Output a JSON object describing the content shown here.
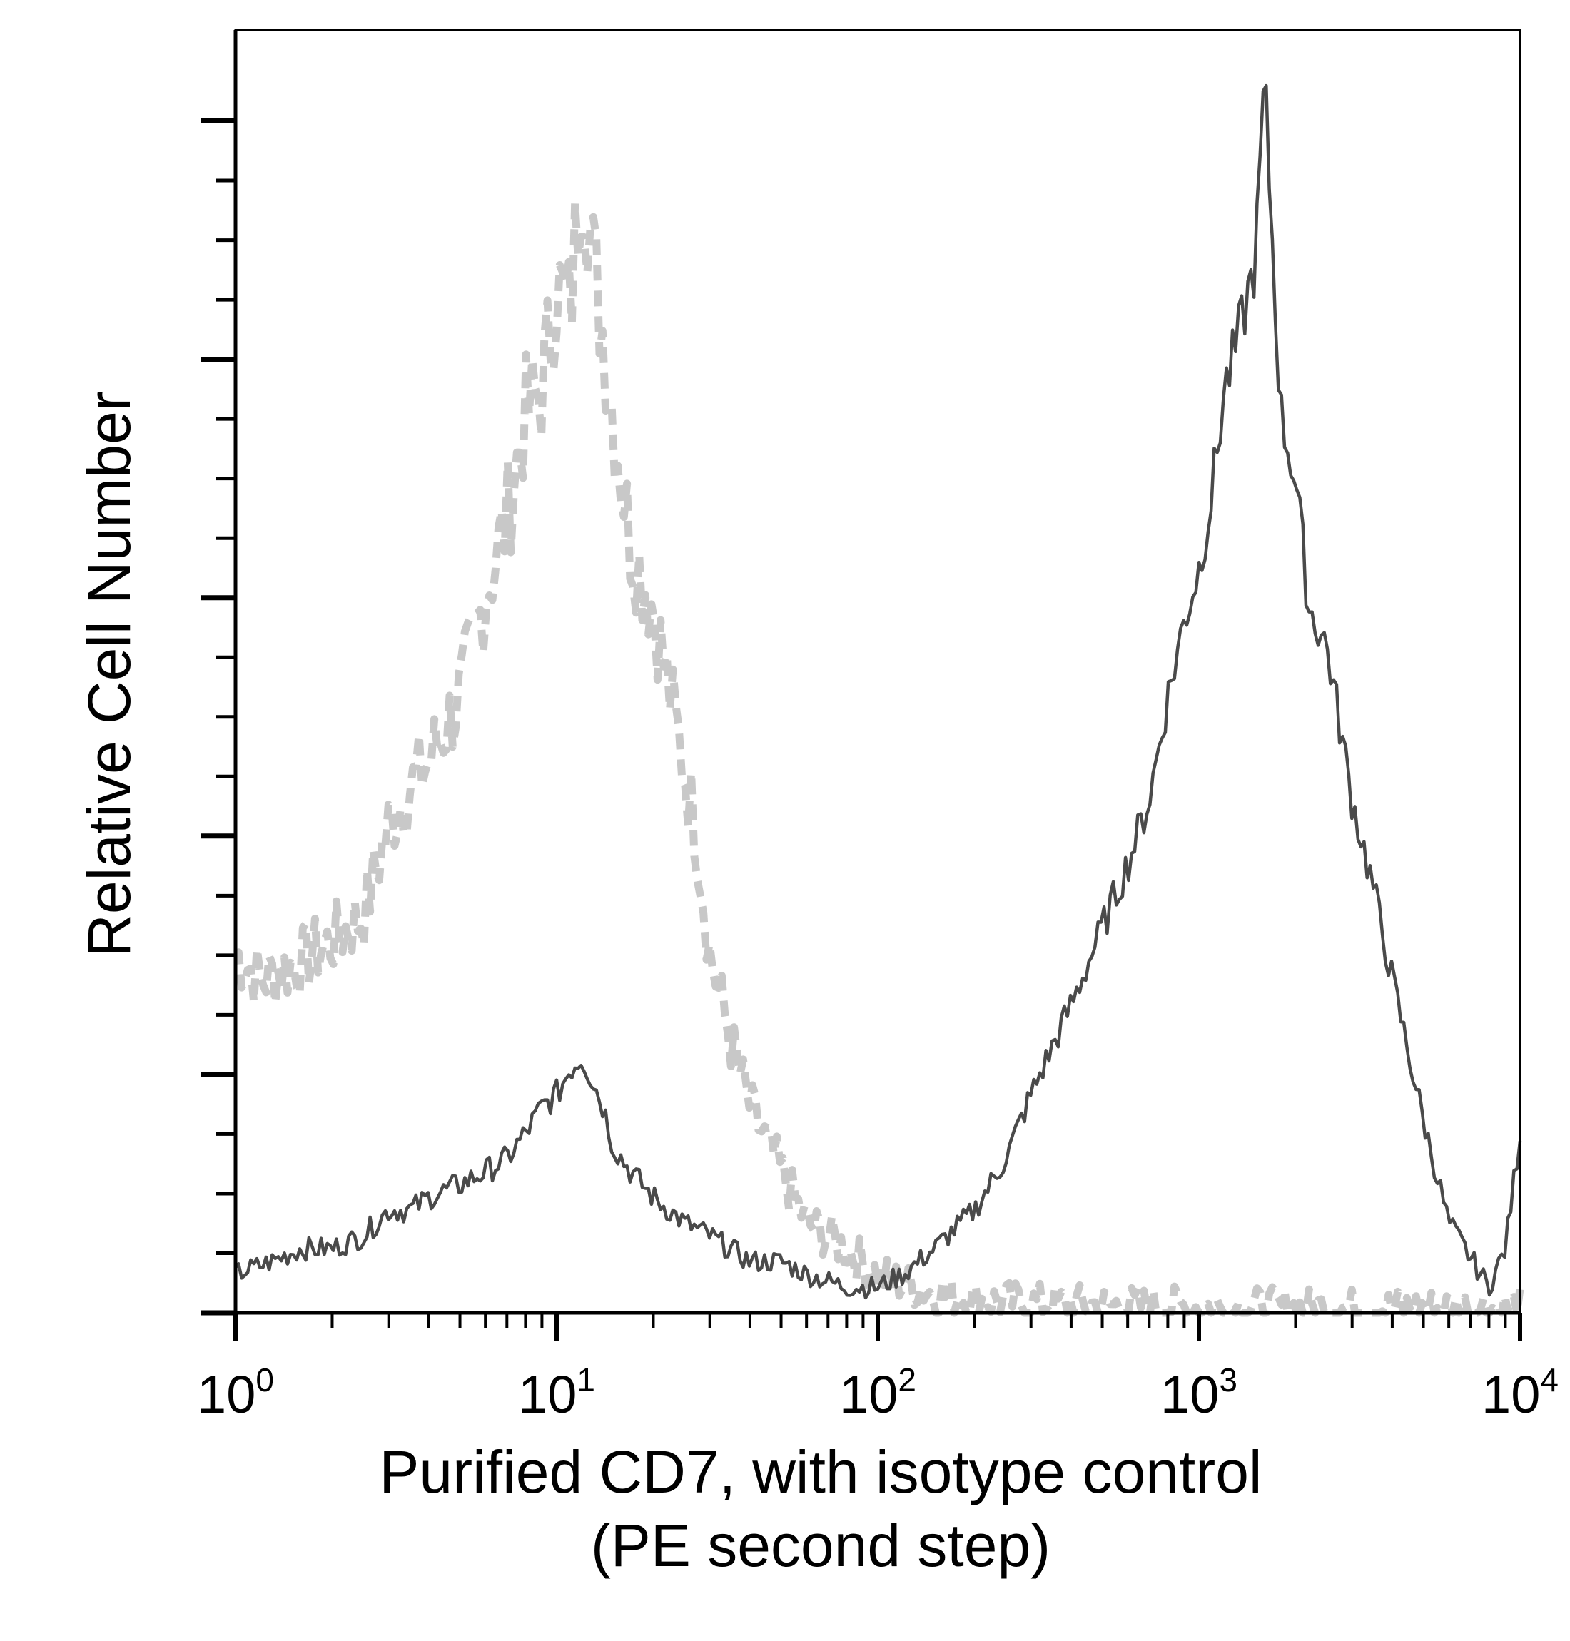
{
  "chart_data": {
    "type": "line",
    "title": "",
    "xlabel_line1": "Purified CD7, with isotype control",
    "xlabel_line2": "(PE second step)",
    "ylabel": "Relative Cell Number",
    "x_scale": "log",
    "xlim": [
      1,
      10000
    ],
    "ylim": [
      0,
      1
    ],
    "grid": false,
    "legend": "none",
    "x_ticks": [
      {
        "base": "10",
        "exp": "0",
        "value": 1
      },
      {
        "base": "10",
        "exp": "1",
        "value": 10
      },
      {
        "base": "10",
        "exp": "2",
        "value": 100
      },
      {
        "base": "10",
        "exp": "3",
        "value": 1000
      },
      {
        "base": "10",
        "exp": "4",
        "value": 10000
      }
    ],
    "series": [
      {
        "role": "isotype-control",
        "style": "dashed",
        "color": "#c8c8c8",
        "x": [
          1,
          1.2,
          1.5,
          2,
          2.5,
          3,
          3.5,
          4,
          5,
          6,
          7,
          8,
          9,
          10,
          11,
          12,
          13,
          14,
          15,
          17,
          20,
          23,
          27,
          30,
          35,
          40,
          50,
          60,
          80,
          100,
          130,
          150,
          200,
          300,
          500,
          1000,
          2000,
          5000,
          10000
        ],
        "y": [
          0.28,
          0.26,
          0.27,
          0.29,
          0.31,
          0.38,
          0.41,
          0.43,
          0.48,
          0.56,
          0.62,
          0.7,
          0.72,
          0.8,
          0.78,
          0.9,
          0.82,
          0.76,
          0.7,
          0.6,
          0.55,
          0.47,
          0.38,
          0.28,
          0.21,
          0.16,
          0.11,
          0.07,
          0.05,
          0.03,
          0.02,
          0.015,
          0.01,
          0.008,
          0.006,
          0.005,
          0.004,
          0.004,
          0.004
        ]
      },
      {
        "role": "cd7",
        "style": "solid",
        "color": "#4a4a4a",
        "x": [
          1,
          1.3,
          1.6,
          2,
          2.5,
          3,
          3.5,
          4,
          5,
          6,
          7,
          8,
          9,
          10,
          11,
          12,
          13,
          14,
          15,
          17,
          20,
          25,
          30,
          40,
          50,
          60,
          80,
          100,
          120,
          150,
          200,
          250,
          300,
          400,
          500,
          600,
          700,
          800,
          900,
          1000,
          1100,
          1200,
          1300,
          1500,
          1600,
          1800,
          2000,
          2200,
          2500,
          3000,
          3500,
          4000,
          5000,
          6000,
          8000,
          9000,
          10000
        ],
        "y": [
          0.03,
          0.04,
          0.05,
          0.05,
          0.06,
          0.08,
          0.08,
          0.09,
          0.1,
          0.11,
          0.12,
          0.14,
          0.16,
          0.17,
          0.19,
          0.2,
          0.18,
          0.16,
          0.13,
          0.11,
          0.09,
          0.07,
          0.06,
          0.04,
          0.04,
          0.03,
          0.02,
          0.02,
          0.03,
          0.05,
          0.08,
          0.12,
          0.17,
          0.24,
          0.3,
          0.35,
          0.4,
          0.48,
          0.54,
          0.58,
          0.64,
          0.72,
          0.75,
          0.82,
          0.96,
          0.7,
          0.65,
          0.55,
          0.52,
          0.4,
          0.33,
          0.26,
          0.15,
          0.07,
          0.02,
          0.05,
          0.14
        ]
      }
    ]
  }
}
